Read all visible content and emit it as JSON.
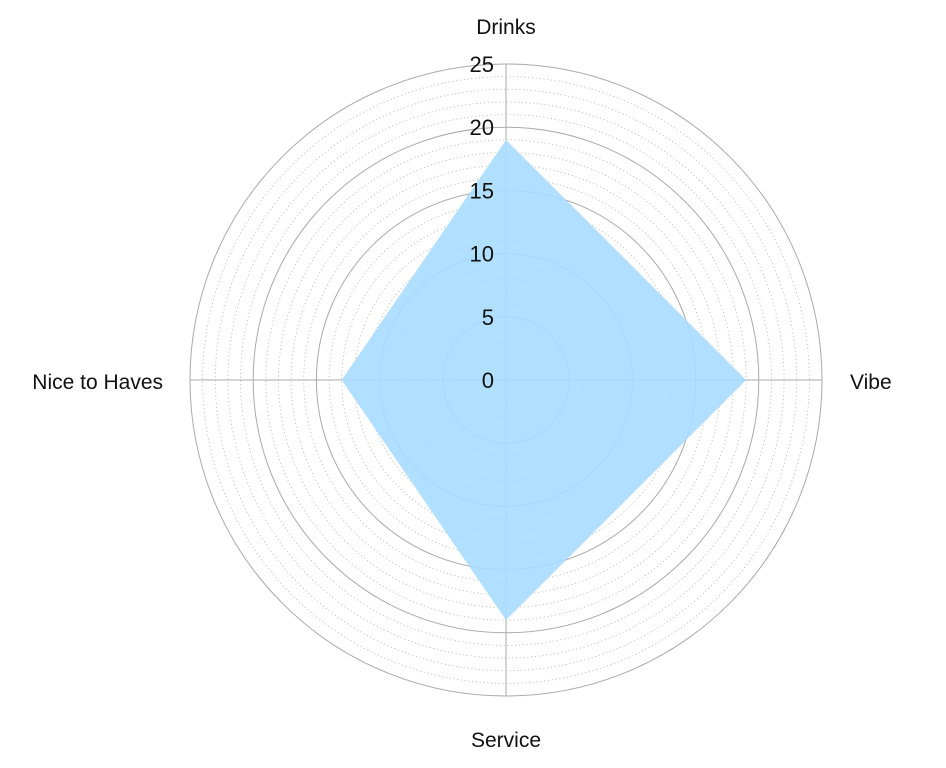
{
  "chart_data": {
    "type": "radar",
    "axes": [
      "Drinks",
      "Vibe",
      "Service",
      "Nice to Haves"
    ],
    "series": [
      {
        "values": [
          19,
          19,
          19,
          13
        ]
      }
    ],
    "rlim": [
      0,
      25
    ],
    "major_ticks": [
      0,
      5,
      10,
      15,
      20,
      25
    ],
    "tick_labels": [
      "0",
      "5",
      "10",
      "15",
      "20",
      "25"
    ],
    "minor_tick_step": 1,
    "grid": true,
    "legend": "none"
  },
  "colors": {
    "fill": "#a8dbff",
    "major_grid": "#aaaaaa",
    "minor_grid": "#bdbdbd",
    "spoke": "#aaaaaa",
    "text": "#111111"
  }
}
